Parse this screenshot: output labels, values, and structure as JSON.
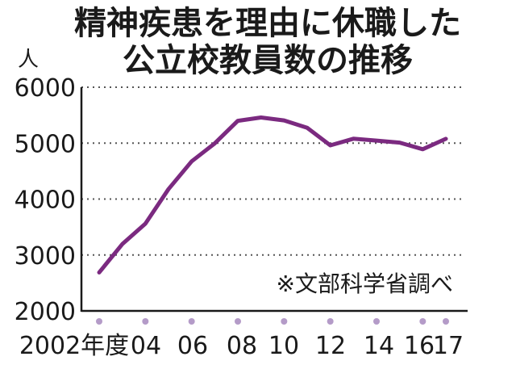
{
  "chart_data": {
    "type": "line",
    "title_lines": [
      "精神疾患を理由に休職した",
      "公立校教員数の推移"
    ],
    "unit_label": "人",
    "ylim": [
      2000,
      6000
    ],
    "y_ticks": [
      "6000",
      "5000",
      "4000",
      "3000",
      "2000"
    ],
    "x": [
      2002,
      2003,
      2004,
      2005,
      2006,
      2007,
      2008,
      2009,
      2010,
      2011,
      2012,
      2013,
      2014,
      2015,
      2016,
      2017
    ],
    "x_tick_labels": [
      "2002年度",
      "04",
      "06",
      "08",
      "10",
      "12",
      "14",
      "16",
      "17"
    ],
    "series": [
      {
        "values": [
          2687,
          3194,
          3559,
          4178,
          4675,
          4995,
          5400,
          5458,
          5407,
          5274,
          4960,
          5078,
          5045,
          5009,
          4891,
          5077
        ]
      }
    ],
    "line_color": "#7b2a80",
    "marker_color": "#b49bc8",
    "grid": true,
    "source_note": "※文部科学省調べ"
  }
}
